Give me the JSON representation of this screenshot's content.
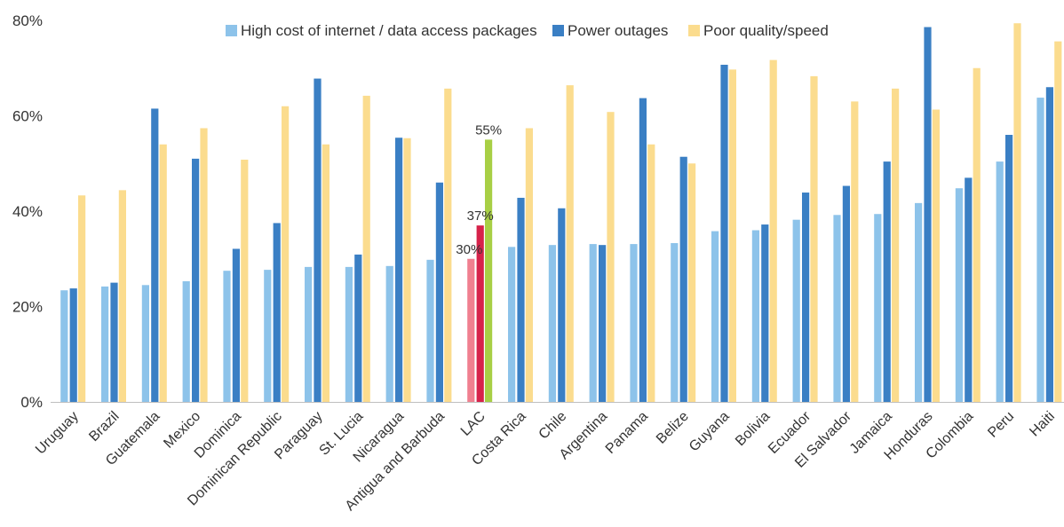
{
  "chart_data": {
    "type": "bar",
    "title": "",
    "xlabel": "",
    "ylabel": "",
    "ylim": [
      0,
      80
    ],
    "ytick_labels": [
      "0%",
      "20%",
      "40%",
      "60%",
      "80%"
    ],
    "grid": false,
    "legend_position": "top",
    "categories": [
      "Uruguay",
      "Brazil",
      "Guatemala",
      "Mexico",
      "Dominica",
      "Dominican Republic",
      "Paraguay",
      "St. Lucia",
      "Nicaragua",
      "Antigua and Barbuda",
      "LAC",
      "Costa Rica",
      "Chile",
      "Argentina",
      "Panama",
      "Belize",
      "Guyana",
      "Bolivia",
      "Ecuador",
      "El Salvador",
      "Jamaica",
      "Honduras",
      "Colombia",
      "Peru",
      "Haiti"
    ],
    "series": [
      {
        "name": "High cost of internet / data access packages",
        "color": "#8dc3ea",
        "values": [
          23.4,
          24.2,
          24.5,
          25.3,
          27.5,
          27.7,
          28.3,
          28.3,
          28.5,
          29.8,
          30,
          32.5,
          32.9,
          33.1,
          33.1,
          33.3,
          35.8,
          36,
          38.2,
          39.2,
          39.4,
          41.7,
          44.8,
          50.4,
          63.8
        ]
      },
      {
        "name": "Power outages",
        "color": "#3a7fc4",
        "values": [
          23.8,
          25,
          61.5,
          51,
          32.1,
          37.5,
          67.8,
          30.9,
          55.4,
          46,
          37,
          42.8,
          40.6,
          32.9,
          63.7,
          51.4,
          70.7,
          37.2,
          43.9,
          45.3,
          50.4,
          78.6,
          47,
          56,
          66
        ]
      },
      {
        "name": "Poor quality/speed",
        "color": "#fbdc8e",
        "values": [
          43.3,
          44.4,
          54,
          57.4,
          50.8,
          62,
          54,
          64.2,
          55.3,
          65.7,
          55,
          57.4,
          66.4,
          60.8,
          54,
          50,
          69.7,
          71.7,
          68.3,
          63,
          65.7,
          61.3,
          70,
          79.4,
          75.6
        ]
      }
    ],
    "highlight": {
      "category": "LAC",
      "colors": [
        "#f07f8f",
        "#d6224a",
        "#a8cf45"
      ],
      "labels": [
        "30%",
        "37%",
        "55%"
      ]
    }
  }
}
